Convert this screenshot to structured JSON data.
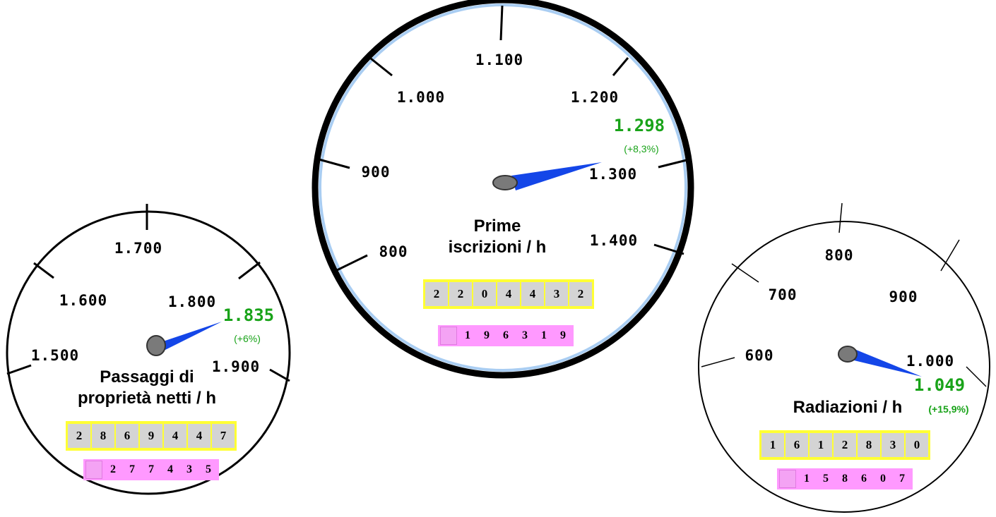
{
  "gauges": {
    "left": {
      "title_line1": "Passaggi di",
      "title_line2": "proprietà netti / h",
      "ticks": [
        "1.500",
        "1.600",
        "1.700",
        "1.800",
        "1.900"
      ],
      "reading": "1.835",
      "change": "(+6%)",
      "counter_digits": [
        "2",
        "8",
        "6",
        "9",
        "4",
        "4",
        "7"
      ],
      "sub_counter_digits": [
        "2",
        "7",
        "7",
        "4",
        "3",
        "5"
      ]
    },
    "center": {
      "title_line1": "Prime",
      "title_line2": "iscrizioni / h",
      "ticks": [
        "800",
        "900",
        "1.000",
        "1.100",
        "1.200",
        "1.300",
        "1.400"
      ],
      "reading": "1.298",
      "change": "(+8,3%)",
      "counter_digits": [
        "2",
        "2",
        "0",
        "4",
        "4",
        "3",
        "2"
      ],
      "sub_counter_digits": [
        "1",
        "9",
        "6",
        "3",
        "1",
        "9"
      ]
    },
    "right": {
      "title_line1": "Radiazioni / h",
      "ticks": [
        "600",
        "700",
        "800",
        "900",
        "1.000"
      ],
      "reading": "1.049",
      "change": "(+15,9%)",
      "counter_digits": [
        "1",
        "6",
        "1",
        "2",
        "8",
        "3",
        "0"
      ],
      "sub_counter_digits": [
        "1",
        "5",
        "8",
        "6",
        "0",
        "7"
      ]
    }
  },
  "colors": {
    "needle": "#1446e8",
    "reading": "#19a319",
    "counter_bg": "#ffff33",
    "sub_counter_bg": "#ff99ff",
    "inner_ring": "#a9cdf2"
  }
}
